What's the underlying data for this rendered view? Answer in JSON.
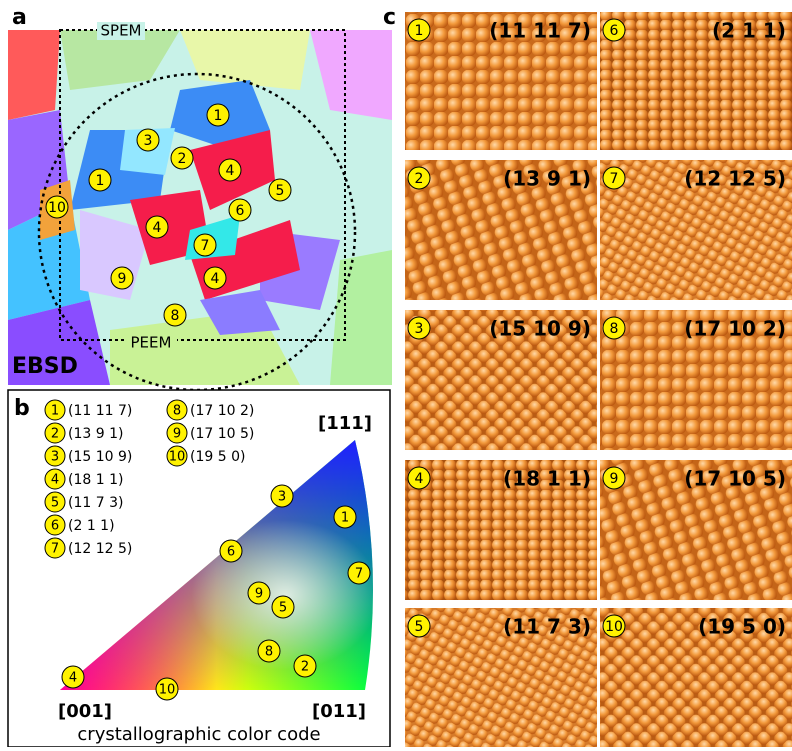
{
  "panel_a": {
    "label": "a",
    "spem": "SPEM",
    "peem": "PEEM",
    "ebsd": "EBSD",
    "markers": [
      "1",
      "3",
      "2",
      "4",
      "1",
      "5",
      "10",
      "6",
      "4",
      "7",
      "9",
      "4",
      "8"
    ]
  },
  "panel_b": {
    "label": "b",
    "legend": [
      {
        "num": "1",
        "text": "(11 11 7)"
      },
      {
        "num": "2",
        "text": "(13 9 1)"
      },
      {
        "num": "3",
        "text": "(15 10 9)"
      },
      {
        "num": "4",
        "text": "(18 1 1)"
      },
      {
        "num": "5",
        "text": "(11 7 3)"
      },
      {
        "num": "6",
        "text": "(2 1 1)"
      },
      {
        "num": "7",
        "text": "(12 12 5)"
      },
      {
        "num": "8",
        "text": "(17 10 2)"
      },
      {
        "num": "9",
        "text": "(17 10 5)"
      },
      {
        "num": "10",
        "text": "(19 5 0)"
      }
    ],
    "corners": [
      "[111]",
      "[001]",
      "[011]"
    ],
    "points": [
      "3",
      "1",
      "6",
      "7",
      "9",
      "5",
      "8",
      "2",
      "4",
      "10"
    ],
    "caption": "crystallographic color code"
  },
  "panel_c": {
    "label": "c",
    "tiles": [
      {
        "num": "1",
        "text": "(11 11 7)"
      },
      {
        "num": "6",
        "text": "(2 1 1)"
      },
      {
        "num": "2",
        "text": "(13 9 1)"
      },
      {
        "num": "7",
        "text": "(12 12 5)"
      },
      {
        "num": "3",
        "text": "(15 10 9)"
      },
      {
        "num": "8",
        "text": "(17 10 2)"
      },
      {
        "num": "4",
        "text": "(18 1 1)"
      },
      {
        "num": "9",
        "text": "(17 10 5)"
      },
      {
        "num": "5",
        "text": "(11 7 3)"
      },
      {
        "num": "10",
        "text": "(19 5 0)"
      }
    ]
  }
}
